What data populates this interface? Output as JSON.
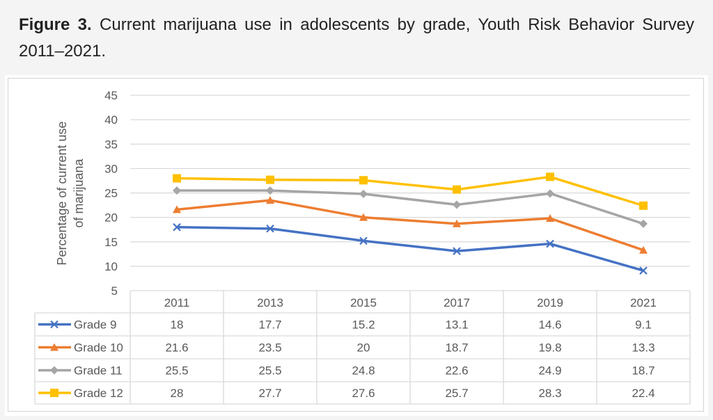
{
  "caption": {
    "label": "Figure 3.",
    "text": " Current marijuana use in adolescents by grade, Youth Risk Behavior Survey 2011–2021."
  },
  "chart_data": {
    "type": "line",
    "title": "Current marijuana use in adolescents by grade, Youth Risk Behavior Survey 2011–2021",
    "ylabel_lines": [
      "Percentage of current use",
      "of  marijuana"
    ],
    "xlabel": "",
    "ylim": [
      5,
      45
    ],
    "yticks": [
      5,
      10,
      15,
      20,
      25,
      30,
      35,
      40,
      45
    ],
    "grid": true,
    "legend": "data-table-left",
    "categories": [
      "2011",
      "2013",
      "2015",
      "2017",
      "2019",
      "2021"
    ],
    "series": [
      {
        "name": "Grade 9",
        "color": "#4472c4",
        "marker": "x",
        "values": [
          18,
          17.7,
          15.2,
          13.1,
          14.6,
          9.1
        ]
      },
      {
        "name": "Grade 10",
        "color": "#ed7d31",
        "marker": "triangle",
        "values": [
          21.6,
          23.5,
          20,
          18.7,
          19.8,
          13.3
        ]
      },
      {
        "name": "Grade 11",
        "color": "#a5a5a5",
        "marker": "diamond",
        "values": [
          25.5,
          25.5,
          24.8,
          22.6,
          24.9,
          18.7
        ]
      },
      {
        "name": "Grade 12",
        "color": "#ffc000",
        "marker": "square",
        "values": [
          28,
          27.7,
          27.6,
          25.7,
          28.3,
          22.4
        ]
      }
    ]
  }
}
